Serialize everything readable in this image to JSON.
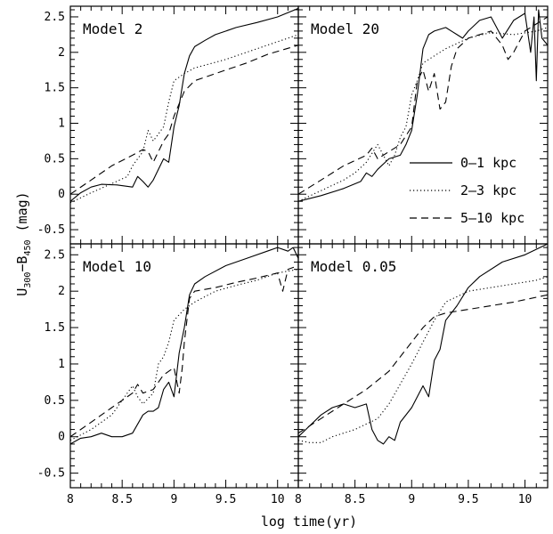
{
  "figure": {
    "xlabel": "log time(yr)",
    "ylabel_main": "U",
    "ylabel_sub1": "300",
    "ylabel_mid": "−B",
    "ylabel_sub2": "450",
    "ylabel_tail": " (mag)"
  },
  "legend": {
    "placement": "Model 20 panel, lower-right",
    "entries": [
      {
        "label": "0–1 kpc",
        "style": "solid"
      },
      {
        "label": "2–3 kpc",
        "style": "dotted"
      },
      {
        "label": "5–10 kpc",
        "style": "dashed"
      }
    ]
  },
  "colors": {
    "line": "#000000",
    "background": "#ffffff"
  },
  "chart_data": [
    {
      "type": "line",
      "title": "Model 2",
      "xlim": [
        8,
        10.2
      ],
      "ylim": [
        -0.7,
        2.65
      ],
      "xticks": [
        "8",
        "8.5",
        "9",
        "9.5",
        "10"
      ],
      "yticks": [
        "-0.5",
        "0",
        "0.5",
        "1",
        "1.5",
        "2",
        "2.5"
      ],
      "grid": false,
      "series": [
        {
          "name": "0–1 kpc",
          "style": "solid",
          "x": [
            8.0,
            8.1,
            8.2,
            8.3,
            8.45,
            8.6,
            8.65,
            8.7,
            8.75,
            8.8,
            8.85,
            8.9,
            8.95,
            9.0,
            9.05,
            9.1,
            9.15,
            9.2,
            9.3,
            9.4,
            9.6,
            9.8,
            10.0,
            10.2
          ],
          "y": [
            -0.1,
            0.02,
            0.1,
            0.14,
            0.13,
            0.1,
            0.25,
            0.18,
            0.1,
            0.2,
            0.35,
            0.5,
            0.45,
            0.95,
            1.25,
            1.7,
            1.95,
            2.08,
            2.17,
            2.25,
            2.35,
            2.42,
            2.5,
            2.62
          ]
        },
        {
          "name": "2–3 kpc",
          "style": "dotted",
          "x": [
            8.0,
            8.2,
            8.4,
            8.55,
            8.6,
            8.7,
            8.75,
            8.8,
            8.85,
            8.9,
            8.95,
            9.0,
            9.1,
            9.2,
            9.3,
            9.5,
            9.7,
            9.9,
            10.1,
            10.2
          ],
          "y": [
            -0.12,
            0.02,
            0.15,
            0.25,
            0.4,
            0.6,
            0.9,
            0.75,
            0.85,
            0.95,
            1.3,
            1.6,
            1.7,
            1.78,
            1.82,
            1.9,
            2.0,
            2.1,
            2.2,
            2.25
          ]
        },
        {
          "name": "5–10 kpc",
          "style": "dashed",
          "x": [
            8.0,
            8.2,
            8.4,
            8.6,
            8.7,
            8.75,
            8.8,
            8.85,
            8.9,
            8.95,
            9.0,
            9.1,
            9.2,
            9.3,
            9.5,
            9.7,
            9.9,
            10.2
          ],
          "y": [
            0.0,
            0.2,
            0.4,
            0.55,
            0.63,
            0.6,
            0.45,
            0.6,
            0.75,
            0.85,
            1.1,
            1.45,
            1.6,
            1.65,
            1.75,
            1.85,
            1.97,
            2.1
          ]
        }
      ]
    },
    {
      "type": "line",
      "title": "Model 20",
      "xlim": [
        8,
        10.2
      ],
      "ylim": [
        -0.7,
        2.65
      ],
      "xticks": [
        "8",
        "8.5",
        "9",
        "9.5",
        "10"
      ],
      "yticks": [
        "-0.5",
        "0",
        "0.5",
        "1",
        "1.5",
        "2",
        "2.5"
      ],
      "grid": false,
      "series": [
        {
          "name": "0–1 kpc",
          "style": "solid",
          "x": [
            8.0,
            8.2,
            8.4,
            8.55,
            8.6,
            8.65,
            8.7,
            8.8,
            8.9,
            8.95,
            9.0,
            9.05,
            9.1,
            9.15,
            9.2,
            9.3,
            9.4,
            9.45,
            9.5,
            9.6,
            9.7,
            9.8,
            9.9,
            10.0,
            10.05,
            10.08,
            10.1,
            10.12,
            10.15,
            10.2
          ],
          "y": [
            -0.1,
            -0.02,
            0.08,
            0.18,
            0.3,
            0.25,
            0.35,
            0.5,
            0.55,
            0.7,
            0.9,
            1.4,
            2.05,
            2.25,
            2.3,
            2.35,
            2.25,
            2.2,
            2.3,
            2.45,
            2.5,
            2.2,
            2.45,
            2.55,
            2.0,
            2.5,
            1.6,
            2.6,
            2.2,
            2.1
          ]
        },
        {
          "name": "2–3 kpc",
          "style": "dotted",
          "x": [
            8.0,
            8.2,
            8.4,
            8.5,
            8.6,
            8.7,
            8.8,
            8.85,
            8.9,
            8.95,
            9.0,
            9.05,
            9.1,
            9.2,
            9.3,
            9.5,
            9.7,
            9.9,
            10.1,
            10.2
          ],
          "y": [
            -0.1,
            0.05,
            0.2,
            0.3,
            0.45,
            0.7,
            0.4,
            0.55,
            0.8,
            0.95,
            1.4,
            1.6,
            1.85,
            1.95,
            2.05,
            2.2,
            2.28,
            2.25,
            2.3,
            2.35
          ]
        },
        {
          "name": "5–10 kpc",
          "style": "dashed",
          "x": [
            8.0,
            8.2,
            8.4,
            8.6,
            8.65,
            8.7,
            8.8,
            8.9,
            9.0,
            9.05,
            9.1,
            9.15,
            9.2,
            9.25,
            9.3,
            9.35,
            9.4,
            9.5,
            9.7,
            9.8,
            9.85,
            9.9,
            10.0,
            10.1,
            10.2
          ],
          "y": [
            0.0,
            0.2,
            0.4,
            0.55,
            0.65,
            0.5,
            0.6,
            0.7,
            0.95,
            1.6,
            1.75,
            1.45,
            1.7,
            1.2,
            1.3,
            1.8,
            2.05,
            2.2,
            2.3,
            2.1,
            1.9,
            2.0,
            2.3,
            2.4,
            2.5
          ]
        }
      ]
    },
    {
      "type": "line",
      "title": "Model 10",
      "xlim": [
        8,
        10.2
      ],
      "ylim": [
        -0.7,
        2.65
      ],
      "xticks": [
        "8",
        "8.5",
        "9",
        "9.5",
        "10"
      ],
      "yticks": [
        "-0.5",
        "0",
        "0.5",
        "1",
        "1.5",
        "2",
        "2.5"
      ],
      "grid": false,
      "series": [
        {
          "name": "0–1 kpc",
          "style": "solid",
          "x": [
            8.0,
            8.1,
            8.2,
            8.3,
            8.4,
            8.5,
            8.6,
            8.7,
            8.75,
            8.8,
            8.85,
            8.9,
            8.95,
            9.0,
            9.05,
            9.1,
            9.15,
            9.2,
            9.3,
            9.5,
            9.7,
            9.9,
            10.0,
            10.1,
            10.15,
            10.2
          ],
          "y": [
            -0.1,
            -0.02,
            0.0,
            0.05,
            0.0,
            0.0,
            0.05,
            0.3,
            0.35,
            0.35,
            0.4,
            0.65,
            0.75,
            0.55,
            1.15,
            1.5,
            1.95,
            2.1,
            2.2,
            2.35,
            2.45,
            2.55,
            2.6,
            2.55,
            2.6,
            2.45
          ]
        },
        {
          "name": "2–3 kpc",
          "style": "dotted",
          "x": [
            8.0,
            8.2,
            8.4,
            8.55,
            8.6,
            8.65,
            8.7,
            8.8,
            8.85,
            8.9,
            8.95,
            9.0,
            9.1,
            9.2,
            9.4,
            9.6,
            9.8,
            10.0,
            10.2
          ],
          "y": [
            -0.05,
            0.1,
            0.3,
            0.6,
            0.7,
            0.55,
            0.45,
            0.6,
            1.0,
            1.1,
            1.3,
            1.6,
            1.75,
            1.85,
            2.0,
            2.08,
            2.15,
            2.25,
            2.3
          ]
        },
        {
          "name": "5–10 kpc",
          "style": "dashed",
          "x": [
            8.0,
            8.2,
            8.4,
            8.6,
            8.65,
            8.7,
            8.8,
            8.9,
            9.0,
            9.05,
            9.08,
            9.1,
            9.15,
            9.2,
            9.4,
            9.6,
            9.8,
            10.0,
            10.05,
            10.1,
            10.2
          ],
          "y": [
            0.0,
            0.2,
            0.4,
            0.6,
            0.72,
            0.6,
            0.65,
            0.85,
            0.95,
            0.6,
            0.95,
            1.3,
            1.9,
            2.0,
            2.05,
            2.12,
            2.18,
            2.25,
            2.0,
            2.3,
            2.35
          ]
        }
      ]
    },
    {
      "type": "line",
      "title": "Model 0.05",
      "xlim": [
        8,
        10.2
      ],
      "ylim": [
        -0.7,
        2.65
      ],
      "xticks": [
        "8",
        "8.5",
        "9",
        "9.5",
        "10"
      ],
      "yticks": [
        "-0.5",
        "0",
        "0.5",
        "1",
        "1.5",
        "2",
        "2.5"
      ],
      "grid": false,
      "series": [
        {
          "name": "0–1 kpc",
          "style": "solid",
          "x": [
            8.0,
            8.1,
            8.2,
            8.3,
            8.4,
            8.5,
            8.6,
            8.65,
            8.7,
            8.75,
            8.8,
            8.85,
            8.9,
            9.0,
            9.1,
            9.15,
            9.2,
            9.25,
            9.3,
            9.4,
            9.5,
            9.6,
            9.8,
            10.0,
            10.2
          ],
          "y": [
            0.0,
            0.15,
            0.3,
            0.4,
            0.45,
            0.4,
            0.45,
            0.1,
            -0.05,
            -0.1,
            0.0,
            -0.05,
            0.2,
            0.4,
            0.7,
            0.55,
            1.05,
            1.2,
            1.6,
            1.8,
            2.05,
            2.2,
            2.4,
            2.5,
            2.65
          ]
        },
        {
          "name": "2–3 kpc",
          "style": "dotted",
          "x": [
            8.0,
            8.1,
            8.2,
            8.3,
            8.5,
            8.7,
            8.8,
            9.0,
            9.1,
            9.2,
            9.3,
            9.5,
            9.7,
            9.9,
            10.1,
            10.2
          ],
          "y": [
            -0.05,
            -0.08,
            -0.08,
            0.0,
            0.1,
            0.25,
            0.45,
            1.0,
            1.3,
            1.6,
            1.85,
            2.0,
            2.05,
            2.1,
            2.15,
            2.2
          ]
        },
        {
          "name": "5–10 kpc",
          "style": "dashed",
          "x": [
            8.0,
            8.2,
            8.4,
            8.6,
            8.8,
            9.0,
            9.1,
            9.2,
            9.3,
            9.5,
            9.7,
            9.9,
            10.2
          ],
          "y": [
            0.05,
            0.25,
            0.45,
            0.65,
            0.9,
            1.3,
            1.5,
            1.65,
            1.7,
            1.75,
            1.8,
            1.85,
            1.95
          ]
        }
      ]
    }
  ]
}
